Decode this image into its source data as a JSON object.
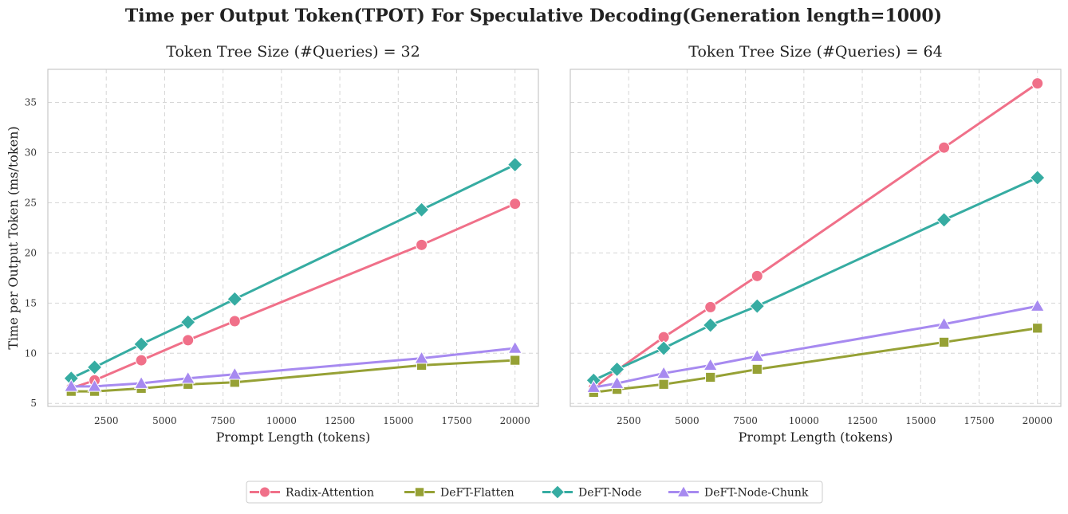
{
  "figure": {
    "suptitle": "Time per Output Token(TPOT) For Speculative Decoding(Generation length=1000)"
  },
  "series_styles": [
    {
      "name": "Radix-Attention",
      "color": "#f07089",
      "marker": "circle"
    },
    {
      "name": "DeFT-Flatten",
      "color": "#96a135",
      "marker": "square"
    },
    {
      "name": "DeFT-Node",
      "color": "#36aca2",
      "marker": "diamond"
    },
    {
      "name": "DeFT-Node-Chunk",
      "color": "#a78af0",
      "marker": "triangle"
    }
  ],
  "chart_data": [
    {
      "type": "line",
      "title": "Token Tree Size (#Queries) = 32",
      "xlabel": "Prompt Length (tokens)",
      "ylabel": "Time per Output Token (ms/token)",
      "xlim": [
        0,
        21000
      ],
      "ylim": [
        4.7,
        38.3
      ],
      "xticks": [
        2500,
        5000,
        7500,
        10000,
        12500,
        15000,
        17500,
        20000
      ],
      "yticks": [
        5,
        10,
        15,
        20,
        25,
        30,
        35
      ],
      "grid": true,
      "x": [
        1000,
        2000,
        4000,
        6000,
        8000,
        16000,
        20000
      ],
      "series": [
        {
          "name": "Radix-Attention",
          "values": [
            6.5,
            7.3,
            9.3,
            11.3,
            13.2,
            20.8,
            24.9
          ]
        },
        {
          "name": "DeFT-Flatten",
          "values": [
            6.2,
            6.2,
            6.5,
            6.9,
            7.1,
            8.8,
            9.3
          ]
        },
        {
          "name": "DeFT-Node",
          "values": [
            7.5,
            8.6,
            10.9,
            13.1,
            15.4,
            24.3,
            28.8
          ]
        },
        {
          "name": "DeFT-Node-Chunk",
          "values": [
            6.7,
            6.7,
            7.0,
            7.5,
            7.9,
            9.5,
            10.5
          ]
        }
      ]
    },
    {
      "type": "line",
      "title": "Token Tree Size (#Queries) = 64",
      "xlabel": "Prompt Length (tokens)",
      "ylabel": "",
      "xlim": [
        0,
        21000
      ],
      "ylim": [
        4.7,
        38.3
      ],
      "xticks": [
        2500,
        5000,
        7500,
        10000,
        12500,
        15000,
        17500,
        20000
      ],
      "yticks": [],
      "grid": true,
      "x": [
        1000,
        2000,
        4000,
        6000,
        8000,
        16000,
        20000
      ],
      "series": [
        {
          "name": "Radix-Attention",
          "values": [
            6.5,
            8.3,
            11.6,
            14.6,
            17.7,
            30.5,
            36.9
          ]
        },
        {
          "name": "DeFT-Flatten",
          "values": [
            6.1,
            6.4,
            6.9,
            7.6,
            8.4,
            11.1,
            12.5
          ]
        },
        {
          "name": "DeFT-Node",
          "values": [
            7.3,
            8.4,
            10.5,
            12.8,
            14.7,
            23.3,
            27.5
          ]
        },
        {
          "name": "DeFT-Node-Chunk",
          "values": [
            6.6,
            7.0,
            8.0,
            8.8,
            9.7,
            12.9,
            14.7
          ]
        }
      ]
    }
  ],
  "legend": {
    "placement": "bottom-center",
    "items": [
      "Radix-Attention",
      "DeFT-Flatten",
      "DeFT-Node",
      "DeFT-Node-Chunk"
    ]
  }
}
